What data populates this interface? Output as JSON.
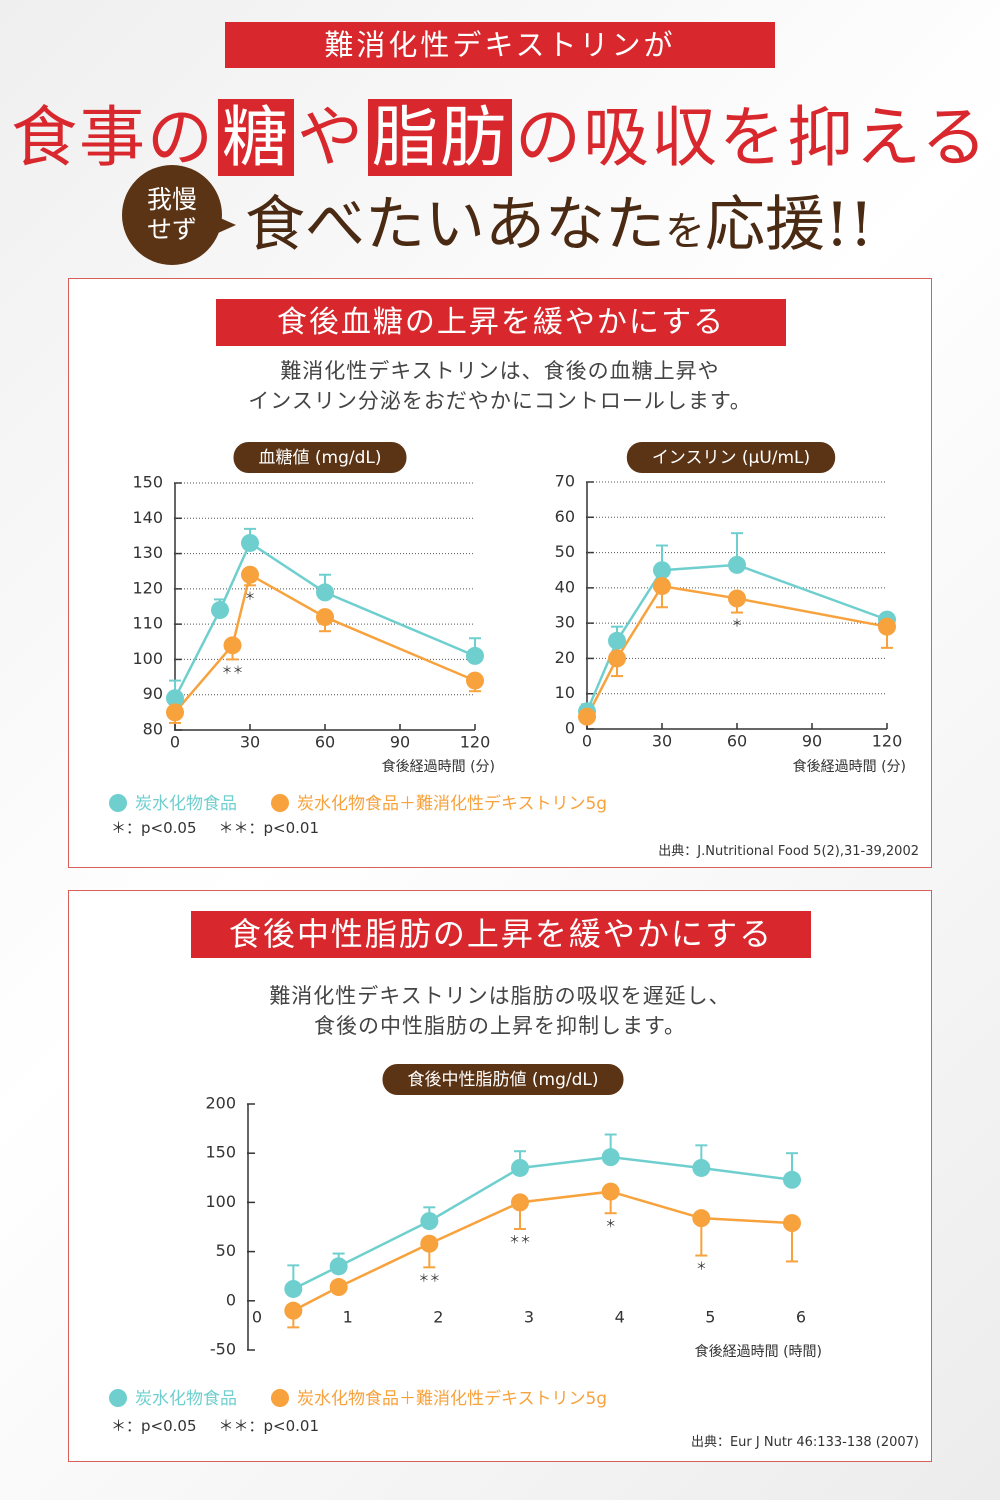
{
  "header": {
    "banner": "難消化性デキストリンが",
    "headline": [
      {
        "text": "食事の",
        "highlight": false
      },
      {
        "text": "糖",
        "highlight": true
      },
      {
        "text": "や",
        "highlight": false
      },
      {
        "text": "脂肪",
        "highlight": true
      },
      {
        "text": "の吸収を抑える",
        "highlight": false
      }
    ],
    "bubble": [
      "我慢",
      "せず"
    ],
    "tagline": [
      "食べたいあなた",
      "を",
      "応援!!"
    ]
  },
  "section1": {
    "title": "食後血糖の上昇を緩やかにする",
    "description": [
      "難消化性デキストリンは、食後の血糖上昇や",
      "インスリン分泌をおだやかにコントロールします。"
    ],
    "notes": [
      "＊：p<0.05",
      "＊＊：p<0.01"
    ],
    "source": "出典：J.Nutritional Food 5(2),31-39,2002"
  },
  "section2": {
    "title": "食後中性脂肪の上昇を緩やかにする",
    "description": [
      "難消化性デキストリンは脂肪の吸収を遅延し、",
      "食後の中性脂肪の上昇を抑制します。"
    ],
    "notes": [
      "＊：p<0.05",
      "＊＊：p<0.01"
    ],
    "source": "出典：Eur J Nutr 46:133-138 (2007)"
  },
  "chart_data": [
    {
      "type": "line",
      "title": "血糖値 (mg/dL)",
      "x_label": "食後経過時間 (分)",
      "xlim": [
        0,
        120
      ],
      "xticks": [
        0,
        30,
        60,
        90,
        120
      ],
      "ylim": [
        80,
        150
      ],
      "yticks": [
        80,
        90,
        100,
        110,
        120,
        130,
        140,
        150
      ],
      "grid": true,
      "series": [
        {
          "name": "炭水化物食品",
          "color": "#6fcfcf",
          "x": [
            0,
            18,
            30,
            60,
            120
          ],
          "values": [
            89,
            114,
            133,
            119,
            101
          ],
          "errors": [
            5,
            3,
            4,
            5,
            5
          ],
          "error_direction": "up"
        },
        {
          "name": "炭水化物食品＋難消化性デキストリン5g",
          "color": "#f7a23c",
          "x": [
            0,
            23,
            30,
            60,
            120
          ],
          "values": [
            85,
            104,
            124,
            112,
            94
          ],
          "errors": [
            3,
            4,
            3,
            4,
            3
          ],
          "error_direction": "down",
          "significance": [
            null,
            "＊＊",
            "＊",
            null,
            null
          ]
        }
      ]
    },
    {
      "type": "line",
      "title": "インスリン (μU/mL)",
      "x_label": "食後経過時間 (分)",
      "xlim": [
        0,
        120
      ],
      "xticks": [
        0,
        30,
        60,
        90,
        120
      ],
      "ylim": [
        0,
        70
      ],
      "yticks": [
        0,
        10,
        20,
        30,
        40,
        50,
        60,
        70
      ],
      "grid": true,
      "series": [
        {
          "color": "#6fcfcf",
          "x": [
            0,
            12,
            30,
            60,
            120
          ],
          "values": [
            5,
            25,
            45,
            46.5,
            31
          ],
          "errors": [
            2,
            4,
            7,
            9,
            1
          ],
          "error_direction": "up"
        },
        {
          "color": "#f7a23c",
          "x": [
            0,
            12,
            30,
            60,
            120
          ],
          "values": [
            3.5,
            20,
            40.5,
            37,
            29
          ],
          "errors": [
            1,
            5,
            6,
            4,
            6
          ],
          "error_direction": "down",
          "significance": [
            null,
            null,
            null,
            "＊",
            null
          ]
        }
      ]
    },
    {
      "type": "line",
      "title": "食後中性脂肪値 (mg/dL)",
      "x_label": "食後経過時間 (時間)",
      "xlim": [
        0,
        6
      ],
      "xticks": [
        0,
        1,
        2,
        3,
        4,
        5,
        6
      ],
      "ylim": [
        -50,
        200
      ],
      "yticks": [
        -50,
        0,
        50,
        100,
        150,
        200
      ],
      "grid": false,
      "series": [
        {
          "name": "炭水化物食品",
          "color": "#6fcfcf",
          "x": [
            0.5,
            1,
            2,
            3,
            4,
            5,
            6
          ],
          "values": [
            12,
            35,
            81,
            135,
            146,
            135,
            123
          ],
          "errors": [
            24,
            13,
            14,
            17,
            23,
            23,
            27
          ],
          "error_direction": "up"
        },
        {
          "name": "炭水化物食品＋難消化性デキストリン5g",
          "color": "#f7a23c",
          "x": [
            0.5,
            1,
            2,
            3,
            4,
            5,
            6
          ],
          "values": [
            -10,
            14,
            58,
            100,
            111,
            84,
            79
          ],
          "errors": [
            17,
            4,
            24,
            27,
            22,
            38,
            39
          ],
          "error_direction": "down",
          "significance": [
            null,
            null,
            "＊＊",
            "＊＊",
            "＊",
            "＊",
            null
          ]
        }
      ]
    }
  ]
}
